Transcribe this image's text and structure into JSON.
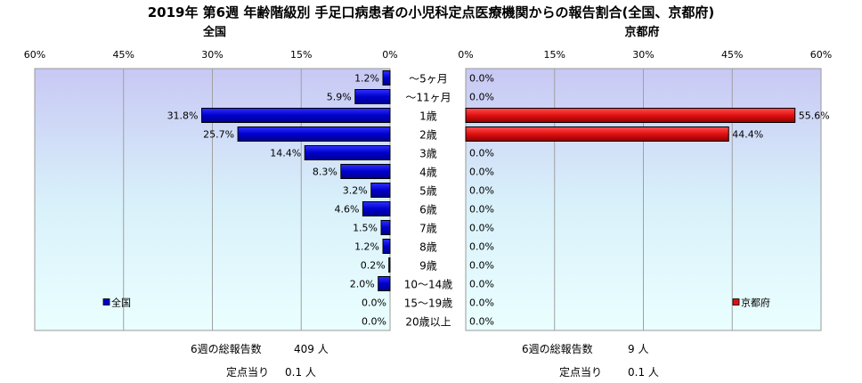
{
  "title": "2019年 第6週 年齢階級別 手足口病患者の小児科定点医療機関からの報告割合(全国、京都府)",
  "chart_data": [
    {
      "type": "bar",
      "orientation": "horizontal",
      "direction": "right-to-left",
      "title": "全国",
      "categories": [
        "～5ヶ月",
        "～11ヶ月",
        "1歳",
        "2歳",
        "3歳",
        "4歳",
        "5歳",
        "6歳",
        "7歳",
        "8歳",
        "9歳",
        "10～14歳",
        "15～19歳",
        "20歳以上"
      ],
      "values": [
        1.2,
        5.9,
        31.8,
        25.7,
        14.4,
        8.3,
        3.2,
        4.6,
        1.5,
        1.2,
        0.2,
        2.0,
        0.0,
        0.0
      ],
      "value_labels": [
        "1.2%",
        "5.9%",
        "31.8%",
        "25.7%",
        "14.4%",
        "8.3%",
        "3.2%",
        "4.6%",
        "1.5%",
        "1.2%",
        "0.2%",
        "2.0%",
        "0.0%",
        "0.0%"
      ],
      "xlim": [
        0,
        60
      ],
      "x_ticks": [
        "60%",
        "45%",
        "30%",
        "15%",
        "0%"
      ],
      "legend": "全国",
      "legend_position": "bottom-left",
      "grid": true,
      "color": "#0000cc"
    },
    {
      "type": "bar",
      "orientation": "horizontal",
      "direction": "left-to-right",
      "title": "京都府",
      "categories": [
        "～5ヶ月",
        "～11ヶ月",
        "1歳",
        "2歳",
        "3歳",
        "4歳",
        "5歳",
        "6歳",
        "7歳",
        "8歳",
        "9歳",
        "10～14歳",
        "15～19歳",
        "20歳以上"
      ],
      "values": [
        0.0,
        0.0,
        55.6,
        44.4,
        0.0,
        0.0,
        0.0,
        0.0,
        0.0,
        0.0,
        0.0,
        0.0,
        0.0,
        0.0
      ],
      "value_labels": [
        "0.0%",
        "0.0%",
        "55.6%",
        "44.4%",
        "0.0%",
        "0.0%",
        "0.0%",
        "0.0%",
        "0.0%",
        "0.0%",
        "0.0%",
        "0.0%",
        "0.0%",
        "0.0%"
      ],
      "xlim": [
        0,
        60
      ],
      "x_ticks": [
        "0%",
        "15%",
        "30%",
        "45%",
        "60%"
      ],
      "legend": "京都府",
      "legend_position": "bottom-right",
      "grid": true,
      "color": "#dd1111"
    }
  ],
  "footer": {
    "left": {
      "total_label": "6週の総報告数",
      "total_value": "409 人",
      "per_label": "定点当り",
      "per_value": "0.1 人"
    },
    "right": {
      "total_label": "6週の総報告数",
      "total_value": "9 人",
      "per_label": "定点当り",
      "per_value": "0.1 人"
    }
  }
}
